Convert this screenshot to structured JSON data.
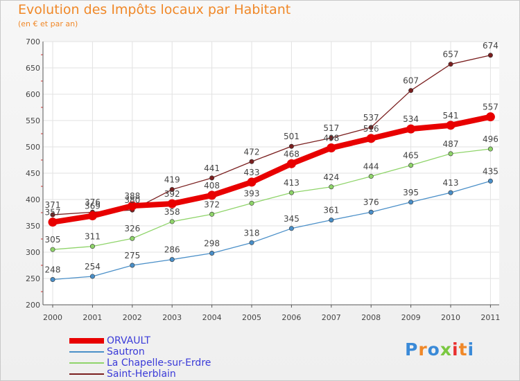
{
  "chart_data": {
    "type": "line",
    "title": "Evolution des Impôts locaux par Habitant",
    "subtitle": "(en € et par an)",
    "xlabel": "",
    "ylabel": "",
    "categories": [
      "2000",
      "2001",
      "2002",
      "2003",
      "2004",
      "2005",
      "2006",
      "2007",
      "2008",
      "2009",
      "2010",
      "2011"
    ],
    "ylim": [
      200,
      700
    ],
    "yticks": [
      200,
      250,
      300,
      350,
      400,
      450,
      500,
      550,
      600,
      650,
      700
    ],
    "grid": true,
    "legend_position": "bottom-left",
    "series": [
      {
        "name": "ORVAULT",
        "color": "#e80000",
        "values": [
          357,
          369,
          388,
          392,
          408,
          433,
          468,
          498,
          516,
          534,
          541,
          557
        ]
      },
      {
        "name": "Sautron",
        "color": "#4a8fc8",
        "values": [
          248,
          254,
          275,
          286,
          298,
          318,
          345,
          361,
          376,
          395,
          413,
          435
        ]
      },
      {
        "name": "La Chapelle-sur-Erdre",
        "color": "#8fd46a",
        "values": [
          305,
          311,
          326,
          358,
          372,
          393,
          413,
          424,
          444,
          465,
          487,
          496
        ]
      },
      {
        "name": "Saint-Herblain",
        "color": "#7a1f1f",
        "values": [
          371,
          376,
          380,
          419,
          441,
          472,
          501,
          517,
          537,
          607,
          657,
          674
        ]
      }
    ]
  },
  "logo": {
    "text": "Proxiti"
  }
}
